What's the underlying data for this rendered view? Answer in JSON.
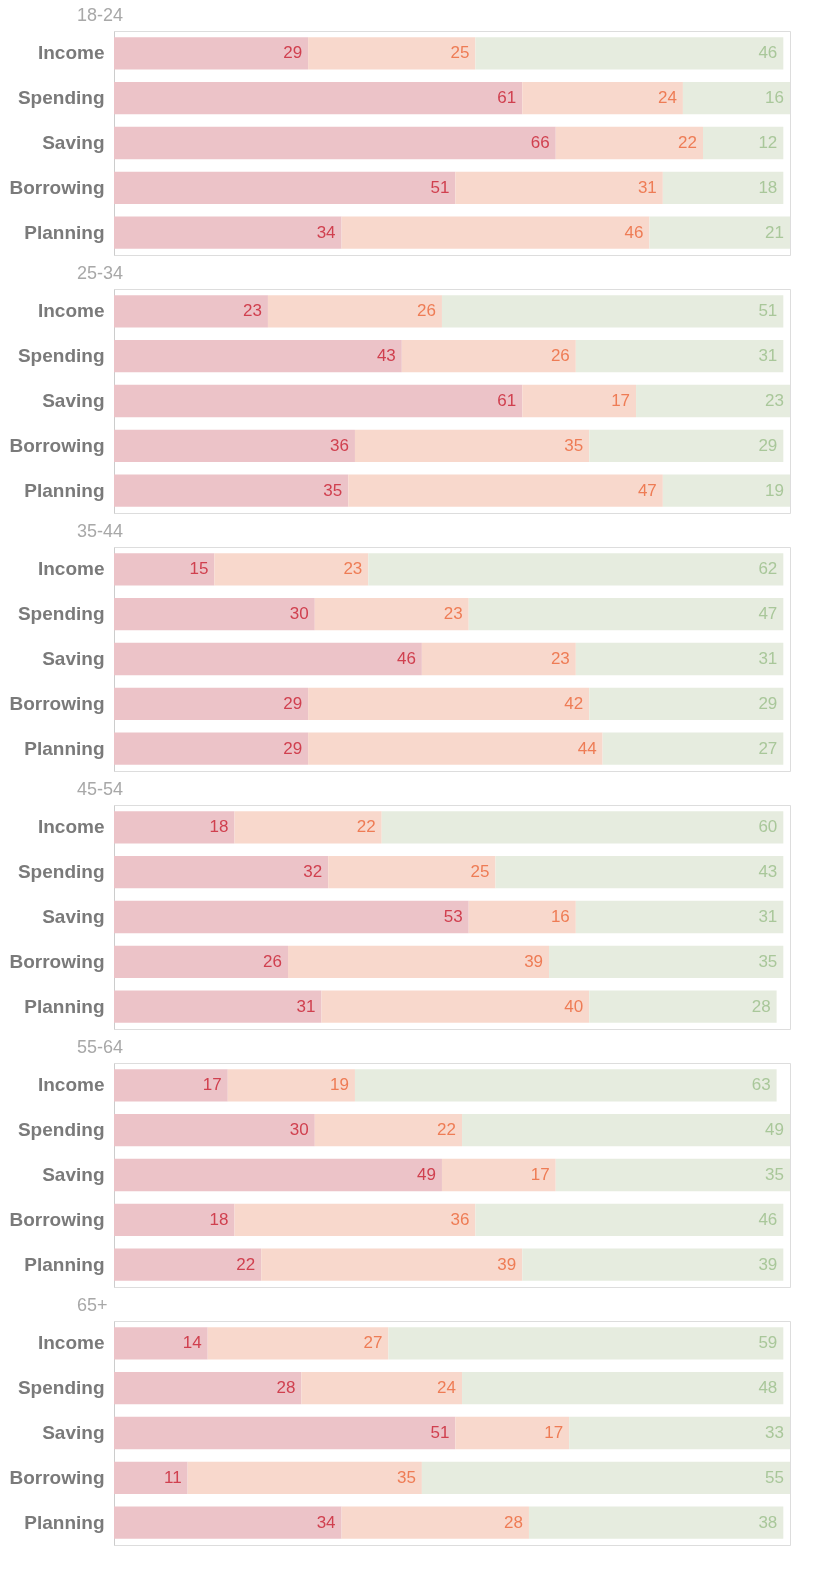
{
  "chart_data": [
    {
      "type": "bar",
      "title": "18-24",
      "orientation": "horizontal",
      "stacked": true,
      "data_labels": true,
      "tick_labels": "y",
      "xlim": [
        0,
        101
      ],
      "categories": [
        "Income",
        "Spending",
        "Saving",
        "Borrowing",
        "Planning"
      ],
      "series": [
        {
          "color": "#ecc3c8",
          "values": [
            29,
            61,
            66,
            51,
            34
          ]
        },
        {
          "color": "#f8d8cc",
          "values": [
            25,
            24,
            22,
            31,
            46
          ]
        },
        {
          "color": "#e6ecdf",
          "values": [
            46,
            16,
            12,
            18,
            21
          ]
        }
      ]
    },
    {
      "type": "bar",
      "title": "25-34",
      "orientation": "horizontal",
      "stacked": true,
      "data_labels": true,
      "tick_labels": "y",
      "xlim": [
        0,
        101
      ],
      "categories": [
        "Income",
        "Spending",
        "Saving",
        "Borrowing",
        "Planning"
      ],
      "series": [
        {
          "color": "#ecc3c8",
          "values": [
            23,
            43,
            61,
            36,
            35
          ]
        },
        {
          "color": "#f8d8cc",
          "values": [
            26,
            26,
            17,
            35,
            47
          ]
        },
        {
          "color": "#e6ecdf",
          "values": [
            51,
            31,
            23,
            29,
            19
          ]
        }
      ]
    },
    {
      "type": "bar",
      "title": "35-44",
      "orientation": "horizontal",
      "stacked": true,
      "data_labels": true,
      "tick_labels": "y",
      "xlim": [
        0,
        101
      ],
      "categories": [
        "Income",
        "Spending",
        "Saving",
        "Borrowing",
        "Planning"
      ],
      "series": [
        {
          "color": "#ecc3c8",
          "values": [
            15,
            30,
            46,
            29,
            29
          ]
        },
        {
          "color": "#f8d8cc",
          "values": [
            23,
            23,
            23,
            42,
            44
          ]
        },
        {
          "color": "#e6ecdf",
          "values": [
            62,
            47,
            31,
            29,
            27
          ]
        }
      ]
    },
    {
      "type": "bar",
      "title": "45-54",
      "orientation": "horizontal",
      "stacked": true,
      "data_labels": true,
      "tick_labels": "y",
      "xlim": [
        0,
        101
      ],
      "categories": [
        "Income",
        "Spending",
        "Saving",
        "Borrowing",
        "Planning"
      ],
      "series": [
        {
          "color": "#ecc3c8",
          "values": [
            18,
            32,
            53,
            26,
            31
          ]
        },
        {
          "color": "#f8d8cc",
          "values": [
            22,
            25,
            16,
            39,
            40
          ]
        },
        {
          "color": "#e6ecdf",
          "values": [
            60,
            43,
            31,
            35,
            28
          ]
        }
      ]
    },
    {
      "type": "bar",
      "title": "55-64",
      "orientation": "horizontal",
      "stacked": true,
      "data_labels": true,
      "tick_labels": "y",
      "xlim": [
        0,
        101
      ],
      "categories": [
        "Income",
        "Spending",
        "Saving",
        "Borrowing",
        "Planning"
      ],
      "series": [
        {
          "color": "#ecc3c8",
          "values": [
            17,
            30,
            49,
            18,
            22
          ]
        },
        {
          "color": "#f8d8cc",
          "values": [
            19,
            22,
            17,
            36,
            39
          ]
        },
        {
          "color": "#e6ecdf",
          "values": [
            63,
            49,
            35,
            46,
            39
          ]
        }
      ]
    },
    {
      "type": "bar",
      "title": "65+",
      "orientation": "horizontal",
      "stacked": true,
      "data_labels": true,
      "tick_labels": "y",
      "xlim": [
        0,
        101
      ],
      "categories": [
        "Income",
        "Spending",
        "Saving",
        "Borrowing",
        "Planning"
      ],
      "series": [
        {
          "color": "#ecc3c8",
          "values": [
            14,
            28,
            51,
            11,
            34
          ]
        },
        {
          "color": "#f8d8cc",
          "values": [
            27,
            24,
            17,
            35,
            28
          ]
        },
        {
          "color": "#e6ecdf",
          "values": [
            59,
            48,
            33,
            55,
            38
          ]
        }
      ]
    }
  ]
}
